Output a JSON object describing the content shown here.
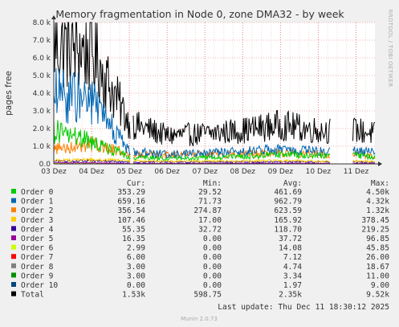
{
  "chart_data": {
    "type": "line",
    "title": "Memory fragmentation in Node 0, zone DMA32 - by week",
    "ylabel": "pages free",
    "ylim": [
      0,
      8000
    ],
    "yticks": [
      "0.0",
      "1.0 k",
      "2.0 k",
      "3.0 k",
      "4.0 k",
      "5.0 k",
      "6.0 k",
      "7.0 k",
      "8.0 k"
    ],
    "xticks": [
      "03 Dez",
      "04 Dez",
      "05 Dez",
      "06 Dez",
      "07 Dez",
      "08 Dez",
      "09 Dez",
      "10 Dez",
      "11 Dez"
    ],
    "x_range_days": [
      0,
      8.5
    ],
    "gaps": [
      [
        2.04,
        2.09
      ],
      [
        7.32,
        7.9
      ]
    ],
    "grid": true,
    "side_label": "RRDTOOL / TOBI OETIKER",
    "series": [
      {
        "name": "Order 0",
        "color": "#00cc00",
        "values_by_day": [
          1900,
          1250,
          400,
          300,
          350,
          400,
          550,
          450,
          470,
          350
        ]
      },
      {
        "name": "Order 1",
        "color": "#0066b3",
        "values_by_day": [
          3900,
          3600,
          700,
          550,
          600,
          700,
          800,
          700,
          700,
          660
        ]
      },
      {
        "name": "Order 2",
        "color": "#ff8000",
        "values_by_day": [
          850,
          1150,
          550,
          500,
          530,
          560,
          620,
          560,
          570,
          360
        ]
      },
      {
        "name": "Order 3",
        "color": "#ffcc00",
        "values_by_day": [
          200,
          250,
          180,
          150,
          160,
          160,
          180,
          150,
          160,
          110
        ]
      },
      {
        "name": "Order 4",
        "color": "#330099",
        "values_by_day": [
          160,
          170,
          110,
          100,
          110,
          110,
          120,
          110,
          110,
          55
        ]
      },
      {
        "name": "Order 5",
        "color": "#990099",
        "values_by_day": [
          70,
          60,
          30,
          25,
          30,
          30,
          35,
          30,
          30,
          16
        ]
      },
      {
        "name": "Order 6",
        "color": "#ccff00",
        "values_by_day": [
          30,
          25,
          12,
          10,
          12,
          12,
          15,
          12,
          12,
          3
        ]
      },
      {
        "name": "Order 7",
        "color": "#ff0000",
        "values_by_day": [
          14,
          12,
          6,
          5,
          6,
          6,
          7,
          6,
          6,
          6
        ]
      },
      {
        "name": "Order 8",
        "color": "#808080",
        "values_by_day": [
          10,
          8,
          4,
          3,
          4,
          4,
          5,
          4,
          4,
          3
        ]
      },
      {
        "name": "Order 9",
        "color": "#008f00",
        "values_by_day": [
          8,
          6,
          3,
          2,
          3,
          3,
          4,
          3,
          3,
          3
        ]
      },
      {
        "name": "Order 10",
        "color": "#00487d",
        "values_by_day": [
          5,
          4,
          2,
          1,
          2,
          2,
          2,
          2,
          2,
          0
        ]
      },
      {
        "name": "Total",
        "color": "#000000",
        "values_by_day": [
          6800,
          6400,
          2300,
          1600,
          1700,
          1900,
          2200,
          1900,
          1900,
          1530
        ]
      }
    ]
  },
  "legend": {
    "headers": {
      "cur": "Cur:",
      "min": "Min:",
      "avg": "Avg:",
      "max": "Max:"
    },
    "rows": [
      {
        "name": "Order 0",
        "color": "#00cc00",
        "cur": "353.29",
        "min": "29.52",
        "avg": "461.69",
        "max": "4.50k"
      },
      {
        "name": "Order 1",
        "color": "#0066b3",
        "cur": "659.16",
        "min": "71.73",
        "avg": "962.79",
        "max": "4.32k"
      },
      {
        "name": "Order 2",
        "color": "#ff8000",
        "cur": "356.54",
        "min": "274.87",
        "avg": "623.59",
        "max": "1.32k"
      },
      {
        "name": "Order 3",
        "color": "#ffcc00",
        "cur": "107.46",
        "min": "17.00",
        "avg": "165.92",
        "max": "378.45"
      },
      {
        "name": "Order 4",
        "color": "#330099",
        "cur": "55.35",
        "min": "32.72",
        "avg": "118.70",
        "max": "219.25"
      },
      {
        "name": "Order 5",
        "color": "#990099",
        "cur": "16.35",
        "min": "0.00",
        "avg": "37.72",
        "max": "96.85"
      },
      {
        "name": "Order 6",
        "color": "#ccff00",
        "cur": "2.99",
        "min": "0.00",
        "avg": "14.08",
        "max": "45.85"
      },
      {
        "name": "Order 7",
        "color": "#ff0000",
        "cur": "6.00",
        "min": "0.00",
        "avg": "7.12",
        "max": "26.00"
      },
      {
        "name": "Order 8",
        "color": "#808080",
        "cur": "3.00",
        "min": "0.00",
        "avg": "4.74",
        "max": "18.67"
      },
      {
        "name": "Order 9",
        "color": "#008f00",
        "cur": "3.00",
        "min": "0.00",
        "avg": "3.34",
        "max": "11.00"
      },
      {
        "name": "Order 10",
        "color": "#00487d",
        "cur": "0.00",
        "min": "0.00",
        "avg": "1.97",
        "max": "9.00"
      },
      {
        "name": "Total",
        "color": "#000000",
        "cur": "1.53k",
        "min": "598.75",
        "avg": "2.35k",
        "max": "9.52k"
      }
    ]
  },
  "last_update": "Last update: Thu Dec 11 18:30:12 2025",
  "footer": "Munin 2.0.73"
}
